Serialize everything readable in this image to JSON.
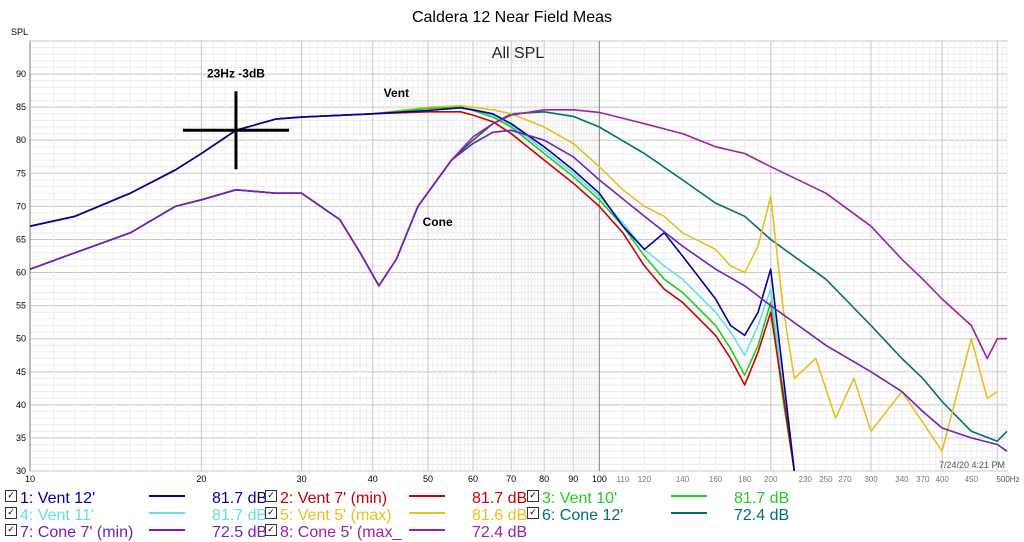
{
  "chart_data": {
    "type": "line",
    "title": "Caldera 12 Near Field Meas",
    "plot_title": "All SPL",
    "ylabel": "SPL",
    "x_unit_label": "500Hz",
    "xscale": "log",
    "xlim": [
      10,
      520
    ],
    "ylim": [
      30,
      95
    ],
    "yticks": [
      30,
      35,
      40,
      45,
      50,
      55,
      60,
      65,
      70,
      75,
      80,
      85,
      90
    ],
    "xticks_major": [
      10,
      20,
      30,
      40,
      50,
      60,
      70,
      80,
      90,
      100
    ],
    "xticks_minor": [
      110,
      120,
      140,
      160,
      180,
      200,
      230,
      250,
      270,
      300,
      340,
      370,
      400,
      450
    ],
    "timestamp": "7/24/20 4:21 PM",
    "annotations": [
      {
        "text": "23Hz -3dB",
        "x": 23,
        "y": 81.5,
        "type": "crosshair"
      },
      {
        "text": "Vent",
        "x": 44,
        "y": 86.5
      },
      {
        "text": "Cone",
        "x": 52,
        "y": 67
      }
    ],
    "series": [
      {
        "id": "1",
        "name": "1: Vent 12'",
        "color": "#0000a0",
        "level": "81.7 dB",
        "points": [
          [
            10,
            67
          ],
          [
            12,
            68.5
          ],
          [
            15,
            72
          ],
          [
            18,
            75.5
          ],
          [
            20,
            78
          ],
          [
            23,
            81.5
          ],
          [
            27,
            83.2
          ],
          [
            30,
            83.5
          ],
          [
            40,
            84
          ],
          [
            50,
            84.5
          ],
          [
            57,
            84.9
          ],
          [
            60,
            84.6
          ],
          [
            65,
            84
          ],
          [
            70,
            82.5
          ],
          [
            80,
            79
          ],
          [
            90,
            75.5
          ],
          [
            100,
            72
          ],
          [
            110,
            67
          ],
          [
            120,
            63.5
          ],
          [
            130,
            66
          ],
          [
            140,
            62.5
          ],
          [
            160,
            56
          ],
          [
            170,
            52
          ],
          [
            180,
            50.5
          ],
          [
            190,
            54
          ],
          [
            200,
            60.5
          ],
          [
            210,
            45
          ],
          [
            220,
            30
          ]
        ]
      },
      {
        "id": "2",
        "name": "2: Vent 7' (min)",
        "color": "#cc0000",
        "level": "81.7 dB",
        "points": [
          [
            10,
            67
          ],
          [
            12,
            68.5
          ],
          [
            15,
            72
          ],
          [
            18,
            75.5
          ],
          [
            20,
            78
          ],
          [
            23,
            81.5
          ],
          [
            27,
            83.2
          ],
          [
            30,
            83.5
          ],
          [
            40,
            84
          ],
          [
            50,
            84.3
          ],
          [
            57,
            84.3
          ],
          [
            60,
            83.8
          ],
          [
            65,
            82.8
          ],
          [
            70,
            81
          ],
          [
            80,
            77
          ],
          [
            90,
            73.5
          ],
          [
            100,
            70
          ],
          [
            110,
            66
          ],
          [
            120,
            61
          ],
          [
            130,
            57.5
          ],
          [
            140,
            55.5
          ],
          [
            160,
            50.5
          ],
          [
            170,
            47
          ],
          [
            180,
            43
          ],
          [
            190,
            48
          ],
          [
            200,
            54
          ],
          [
            210,
            42
          ],
          [
            220,
            30
          ]
        ]
      },
      {
        "id": "3",
        "name": "3: Vent 10'",
        "color": "#22cc22",
        "level": "81.7 dB",
        "points": [
          [
            10,
            67
          ],
          [
            12,
            68.5
          ],
          [
            15,
            72
          ],
          [
            18,
            75.5
          ],
          [
            20,
            78
          ],
          [
            23,
            81.5
          ],
          [
            27,
            83.2
          ],
          [
            30,
            83.5
          ],
          [
            40,
            84
          ],
          [
            50,
            84.8
          ],
          [
            57,
            85
          ],
          [
            60,
            84.5
          ],
          [
            65,
            83.5
          ],
          [
            70,
            82
          ],
          [
            80,
            78
          ],
          [
            90,
            74.5
          ],
          [
            100,
            71
          ],
          [
            110,
            67
          ],
          [
            120,
            62.5
          ],
          [
            130,
            59
          ],
          [
            140,
            57
          ],
          [
            160,
            52
          ],
          [
            170,
            48.5
          ],
          [
            180,
            44.5
          ],
          [
            190,
            49
          ],
          [
            200,
            55.5
          ],
          [
            210,
            41
          ],
          [
            220,
            30
          ]
        ]
      },
      {
        "id": "4",
        "name": "4: Vent 11'",
        "color": "#66e0e0",
        "level": "81.7 dB",
        "points": [
          [
            10,
            67
          ],
          [
            12,
            68.5
          ],
          [
            15,
            72
          ],
          [
            18,
            75.5
          ],
          [
            20,
            78
          ],
          [
            23,
            81.5
          ],
          [
            27,
            83.2
          ],
          [
            30,
            83.5
          ],
          [
            40,
            84
          ],
          [
            50,
            84.8
          ],
          [
            57,
            85
          ],
          [
            60,
            84.6
          ],
          [
            65,
            83.8
          ],
          [
            70,
            82.3
          ],
          [
            80,
            78.5
          ],
          [
            90,
            75
          ],
          [
            100,
            71.5
          ],
          [
            110,
            67.5
          ],
          [
            120,
            63.5
          ],
          [
            130,
            61
          ],
          [
            140,
            59
          ],
          [
            160,
            54
          ],
          [
            170,
            51
          ],
          [
            180,
            47.5
          ],
          [
            190,
            52
          ],
          [
            200,
            57.5
          ],
          [
            210,
            43
          ],
          [
            220,
            30
          ]
        ]
      },
      {
        "id": "5",
        "name": "5: Vent 5' (max)",
        "color": "#e8c020",
        "level": "81.6 dB",
        "points": [
          [
            10,
            67
          ],
          [
            12,
            68.5
          ],
          [
            15,
            72
          ],
          [
            18,
            75.5
          ],
          [
            20,
            78
          ],
          [
            23,
            81.5
          ],
          [
            27,
            83.2
          ],
          [
            30,
            83.5
          ],
          [
            40,
            84
          ],
          [
            50,
            85
          ],
          [
            57,
            85.2
          ],
          [
            60,
            85
          ],
          [
            65,
            84.6
          ],
          [
            70,
            84
          ],
          [
            80,
            82
          ],
          [
            90,
            79.5
          ],
          [
            100,
            76
          ],
          [
            110,
            72.5
          ],
          [
            120,
            70
          ],
          [
            130,
            68.5
          ],
          [
            140,
            66
          ],
          [
            160,
            63.5
          ],
          [
            170,
            61
          ],
          [
            180,
            60
          ],
          [
            190,
            64
          ],
          [
            200,
            71.5
          ],
          [
            210,
            55
          ],
          [
            220,
            44
          ],
          [
            240,
            47
          ],
          [
            260,
            38
          ],
          [
            280,
            44
          ],
          [
            300,
            36
          ],
          [
            340,
            42
          ],
          [
            400,
            33
          ],
          [
            450,
            50
          ],
          [
            480,
            41
          ],
          [
            500,
            42
          ]
        ]
      },
      {
        "id": "6",
        "name": "6: Cone 12'",
        "color": "#007070",
        "level": "72.4 dB",
        "points": [
          [
            10,
            60.5
          ],
          [
            12,
            63
          ],
          [
            15,
            66
          ],
          [
            18,
            70
          ],
          [
            20,
            71
          ],
          [
            23,
            72.5
          ],
          [
            27,
            72
          ],
          [
            30,
            72
          ],
          [
            35,
            68
          ],
          [
            38,
            63
          ],
          [
            41,
            58
          ],
          [
            44,
            62
          ],
          [
            48,
            70
          ],
          [
            55,
            77
          ],
          [
            60,
            80
          ],
          [
            65,
            82.5
          ],
          [
            70,
            84
          ],
          [
            80,
            84.3
          ],
          [
            90,
            83.6
          ],
          [
            100,
            82
          ],
          [
            120,
            78
          ],
          [
            140,
            74
          ],
          [
            160,
            70.5
          ],
          [
            180,
            68.5
          ],
          [
            200,
            65
          ],
          [
            250,
            59
          ],
          [
            300,
            52
          ],
          [
            340,
            47
          ],
          [
            370,
            44
          ],
          [
            400,
            40.5
          ],
          [
            450,
            36
          ],
          [
            500,
            34.5
          ],
          [
            520,
            36
          ]
        ]
      },
      {
        "id": "7",
        "name": "7: Cone 7' (min)",
        "color": "#7020c0",
        "level": "72.5 dB",
        "points": [
          [
            10,
            60.5
          ],
          [
            12,
            63
          ],
          [
            15,
            66
          ],
          [
            18,
            70
          ],
          [
            20,
            71
          ],
          [
            23,
            72.5
          ],
          [
            27,
            72
          ],
          [
            30,
            72
          ],
          [
            35,
            68
          ],
          [
            38,
            63
          ],
          [
            41,
            58
          ],
          [
            44,
            62
          ],
          [
            48,
            70
          ],
          [
            55,
            77
          ],
          [
            60,
            79.5
          ],
          [
            65,
            81.2
          ],
          [
            70,
            81.5
          ],
          [
            80,
            80
          ],
          [
            90,
            77.5
          ],
          [
            100,
            74
          ],
          [
            120,
            68.5
          ],
          [
            140,
            64
          ],
          [
            160,
            60.5
          ],
          [
            180,
            58
          ],
          [
            200,
            55
          ],
          [
            250,
            49
          ],
          [
            300,
            45
          ],
          [
            340,
            42
          ],
          [
            370,
            39
          ],
          [
            400,
            36.5
          ],
          [
            450,
            35
          ],
          [
            500,
            34
          ],
          [
            520,
            33
          ]
        ]
      },
      {
        "id": "8",
        "name": "8: Cone 5' (max_",
        "color": "#a020a0",
        "level": "72.4 dB",
        "points": [
          [
            10,
            60.5
          ],
          [
            12,
            63
          ],
          [
            15,
            66
          ],
          [
            18,
            70
          ],
          [
            20,
            71
          ],
          [
            23,
            72.5
          ],
          [
            27,
            72
          ],
          [
            30,
            72
          ],
          [
            35,
            68
          ],
          [
            38,
            63
          ],
          [
            41,
            58
          ],
          [
            44,
            62
          ],
          [
            48,
            70
          ],
          [
            55,
            77
          ],
          [
            60,
            80.5
          ],
          [
            65,
            82.5
          ],
          [
            70,
            83.8
          ],
          [
            80,
            84.6
          ],
          [
            90,
            84.6
          ],
          [
            100,
            84.2
          ],
          [
            120,
            82.5
          ],
          [
            140,
            81
          ],
          [
            160,
            79
          ],
          [
            180,
            78
          ],
          [
            200,
            76
          ],
          [
            250,
            72
          ],
          [
            300,
            67
          ],
          [
            340,
            62
          ],
          [
            370,
            59
          ],
          [
            400,
            56
          ],
          [
            450,
            52
          ],
          [
            480,
            47
          ],
          [
            500,
            50
          ],
          [
            520,
            50
          ]
        ]
      }
    ]
  }
}
